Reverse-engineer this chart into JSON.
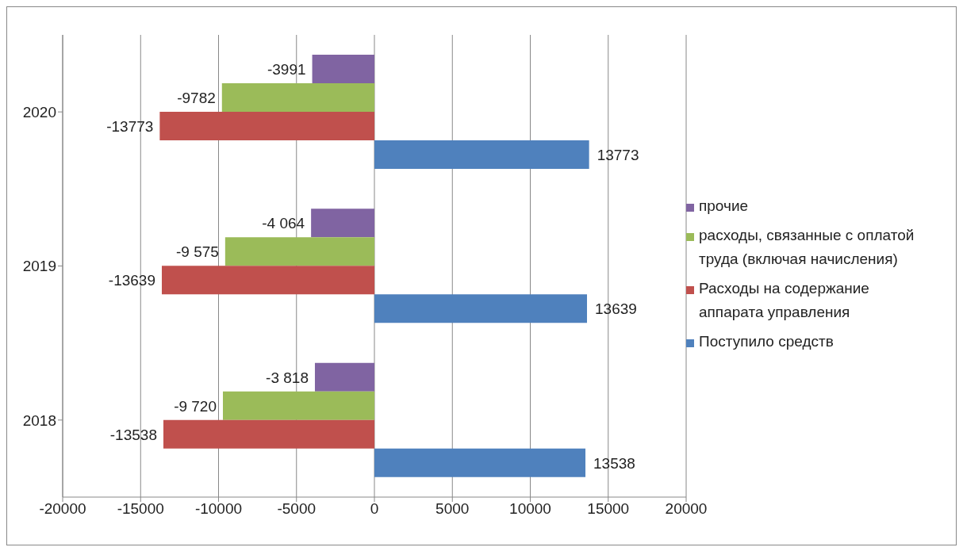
{
  "chart_data": {
    "type": "bar",
    "orientation": "horizontal",
    "categories": [
      "2020",
      "2019",
      "2018"
    ],
    "series": [
      {
        "name": "прочие",
        "color": "#8064a2",
        "values": [
          -3991,
          -4064,
          -3818
        ],
        "value_labels": [
          "-3991",
          "-4 064",
          "-3 818"
        ]
      },
      {
        "name": "расходы, связанные с оплатой труда (включая начисления)",
        "color": "#9bbb59",
        "values": [
          -9782,
          -9575,
          -9720
        ],
        "value_labels": [
          "-9782",
          "-9 575",
          "-9 720"
        ]
      },
      {
        "name": "Расходы на содержание аппарата управления",
        "color": "#c0504d",
        "values": [
          -13773,
          -13639,
          -13538
        ],
        "value_labels": [
          "-13773",
          "-13639",
          "-13538"
        ]
      },
      {
        "name": "Поступило средств",
        "color": "#4f81bd",
        "values": [
          13773,
          13639,
          13538
        ],
        "value_labels": [
          "13773",
          "13639",
          "13538"
        ]
      }
    ],
    "xlim": [
      -20000,
      20000
    ],
    "xticks": [
      -20000,
      -15000,
      -10000,
      -5000,
      0,
      5000,
      10000,
      15000,
      20000
    ],
    "grid": "x",
    "legend": "right"
  }
}
